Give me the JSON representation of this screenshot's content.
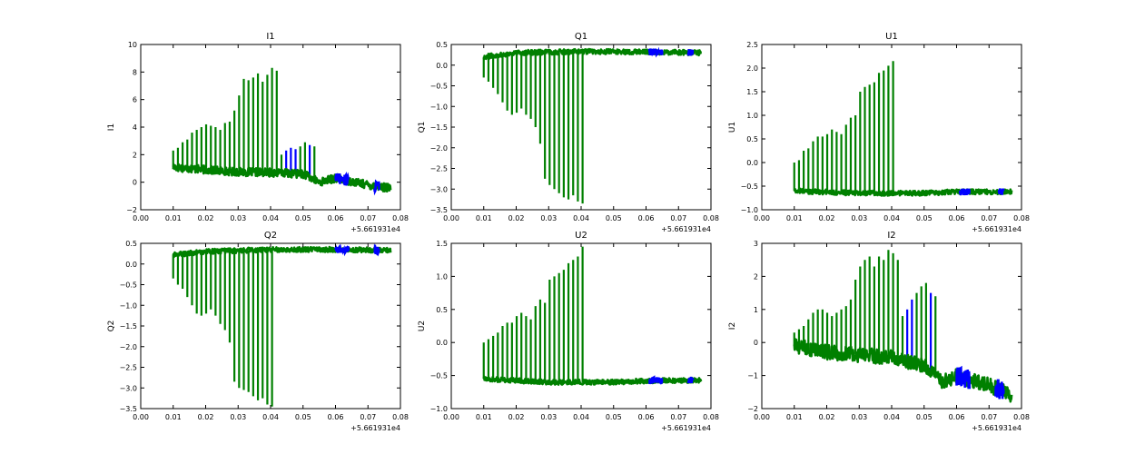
{
  "colors": {
    "series_a": "#0000ff",
    "series_b": "#008000",
    "frame": "#000000",
    "background": "#ffffff"
  },
  "chart_data": [
    {
      "type": "line",
      "title": "I1",
      "xlabel": "",
      "ylabel": "I1",
      "xlim": [
        0.0,
        0.08
      ],
      "ylim": [
        -2,
        10
      ],
      "x_ticks": [
        "0.00",
        "0.01",
        "0.02",
        "0.03",
        "0.04",
        "0.05",
        "0.06",
        "0.07",
        "0.08"
      ],
      "y_ticks": [
        "−2",
        "0",
        "2",
        "4",
        "6",
        "8",
        "10"
      ],
      "x_offset_label": "+5.661931e4",
      "grid": false,
      "baseline": {
        "x": [
          0.01,
          0.02,
          0.03,
          0.04,
          0.05,
          0.055,
          0.06,
          0.07,
          0.077
        ],
        "y": [
          1.1,
          0.9,
          0.75,
          0.7,
          0.6,
          0.0,
          0.3,
          -0.2,
          -0.45
        ]
      },
      "spikes": {
        "x_start": 0.01,
        "step": 0.00145,
        "count": 31,
        "levels": [
          2.3,
          2.5,
          2.9,
          3.1,
          3.6,
          3.8,
          4.0,
          4.2,
          4.1,
          4.0,
          3.8,
          4.3,
          4.4,
          5.2,
          6.3,
          7.5,
          7.4,
          7.6,
          7.9,
          7.3,
          7.8,
          8.3,
          8.1,
          2.0,
          2.3,
          2.5,
          2.4,
          2.6,
          2.9,
          2.7,
          2.6
        ],
        "blue_indices": [
          24,
          25,
          26,
          29
        ]
      },
      "blue_bands": [
        [
          0.06,
          0.064
        ],
        [
          0.072,
          0.0735
        ]
      ]
    },
    {
      "type": "line",
      "title": "Q1",
      "xlabel": "",
      "ylabel": "Q1",
      "xlim": [
        0.0,
        0.08
      ],
      "ylim": [
        -3.5,
        0.5
      ],
      "x_ticks": [
        "0.00",
        "0.01",
        "0.02",
        "0.03",
        "0.04",
        "0.05",
        "0.06",
        "0.07",
        "0.08"
      ],
      "y_ticks": [
        "−3.5",
        "−3.0",
        "−2.5",
        "−2.0",
        "−1.5",
        "−1.0",
        "−0.5",
        "0.0",
        "0.5"
      ],
      "x_offset_label": "+5.661931e4",
      "grid": false,
      "baseline": {
        "x": [
          0.01,
          0.02,
          0.04,
          0.06,
          0.077
        ],
        "y": [
          0.2,
          0.3,
          0.33,
          0.32,
          0.3
        ]
      },
      "spikes": {
        "x_start": 0.01,
        "step": 0.00145,
        "count": 22,
        "levels": [
          -0.3,
          -0.4,
          -0.55,
          -0.7,
          -0.9,
          -1.1,
          -1.2,
          -1.15,
          -1.05,
          -1.2,
          -1.3,
          -1.5,
          -1.9,
          -2.75,
          -2.9,
          -3.0,
          -3.1,
          -3.2,
          -3.25,
          -3.15,
          -3.3,
          -3.35
        ],
        "blue_indices": []
      },
      "blue_bands": [
        [
          0.061,
          0.065
        ],
        [
          0.073,
          0.0745
        ]
      ]
    },
    {
      "type": "line",
      "title": "U1",
      "xlabel": "",
      "ylabel": "U1",
      "xlim": [
        0.0,
        0.08
      ],
      "ylim": [
        -1.0,
        2.5
      ],
      "x_ticks": [
        "0.00",
        "0.01",
        "0.02",
        "0.03",
        "0.04",
        "0.05",
        "0.06",
        "0.07",
        "0.08"
      ],
      "y_ticks": [
        "−1.0",
        "−0.5",
        "0.0",
        "0.5",
        "1.0",
        "1.5",
        "2.0",
        "2.5"
      ],
      "x_offset_label": "+5.661931e4",
      "grid": false,
      "baseline": {
        "x": [
          0.01,
          0.03,
          0.05,
          0.06,
          0.077
        ],
        "y": [
          -0.6,
          -0.65,
          -0.65,
          -0.62,
          -0.62
        ]
      },
      "spikes": {
        "x_start": 0.01,
        "step": 0.00145,
        "count": 22,
        "levels": [
          0.0,
          0.05,
          0.25,
          0.3,
          0.45,
          0.55,
          0.55,
          0.6,
          0.7,
          0.65,
          0.6,
          0.8,
          0.95,
          1.0,
          1.5,
          1.6,
          1.65,
          1.7,
          1.9,
          1.95,
          2.05,
          2.15
        ],
        "blue_indices": []
      },
      "blue_bands": [
        [
          0.061,
          0.064
        ],
        [
          0.073,
          0.0745
        ]
      ]
    },
    {
      "type": "line",
      "title": "Q2",
      "xlabel": "",
      "ylabel": "Q2",
      "xlim": [
        0.0,
        0.08
      ],
      "ylim": [
        -3.5,
        0.5
      ],
      "x_ticks": [
        "0.00",
        "0.01",
        "0.02",
        "0.03",
        "0.04",
        "0.05",
        "0.06",
        "0.07",
        "0.08"
      ],
      "y_ticks": [
        "−3.5",
        "−3.0",
        "−2.5",
        "−2.0",
        "−1.5",
        "−1.0",
        "−0.5",
        "0.0",
        "0.5"
      ],
      "x_offset_label": "+5.661931e4",
      "grid": false,
      "baseline": {
        "x": [
          0.01,
          0.02,
          0.04,
          0.06,
          0.077
        ],
        "y": [
          0.22,
          0.3,
          0.35,
          0.35,
          0.33
        ]
      },
      "spikes": {
        "x_start": 0.01,
        "step": 0.00145,
        "count": 22,
        "levels": [
          -0.35,
          -0.5,
          -0.6,
          -0.8,
          -1.0,
          -1.2,
          -1.25,
          -1.2,
          -1.1,
          -1.25,
          -1.45,
          -1.6,
          -1.9,
          -2.85,
          -3.0,
          -3.05,
          -3.1,
          -3.2,
          -3.3,
          -3.25,
          -3.4,
          -3.45
        ],
        "blue_indices": []
      },
      "blue_bands": [
        [
          0.06,
          0.064
        ],
        [
          0.072,
          0.0735
        ]
      ]
    },
    {
      "type": "line",
      "title": "U2",
      "xlabel": "",
      "ylabel": "U2",
      "xlim": [
        0.0,
        0.08
      ],
      "ylim": [
        -1.0,
        1.5
      ],
      "x_ticks": [
        "0.00",
        "0.01",
        "0.02",
        "0.03",
        "0.04",
        "0.05",
        "0.06",
        "0.07",
        "0.08"
      ],
      "y_ticks": [
        "−1.0",
        "−0.5",
        "0.0",
        "0.5",
        "1.0",
        "1.5"
      ],
      "x_offset_label": "+5.661931e4",
      "grid": false,
      "baseline": {
        "x": [
          0.01,
          0.03,
          0.05,
          0.06,
          0.077
        ],
        "y": [
          -0.55,
          -0.6,
          -0.6,
          -0.58,
          -0.57
        ]
      },
      "spikes": {
        "x_start": 0.01,
        "step": 0.00145,
        "count": 22,
        "levels": [
          0.0,
          0.05,
          0.1,
          0.15,
          0.25,
          0.3,
          0.3,
          0.4,
          0.45,
          0.4,
          0.35,
          0.55,
          0.65,
          0.6,
          0.95,
          1.0,
          1.05,
          1.1,
          1.2,
          1.25,
          1.3,
          1.45
        ],
        "blue_indices": []
      },
      "blue_bands": [
        [
          0.061,
          0.065
        ],
        [
          0.073,
          0.0745
        ]
      ]
    },
    {
      "type": "line",
      "title": "I2",
      "xlabel": "",
      "ylabel": "I2",
      "xlim": [
        0.0,
        0.08
      ],
      "ylim": [
        -2,
        3
      ],
      "x_ticks": [
        "0.00",
        "0.01",
        "0.02",
        "0.03",
        "0.04",
        "0.05",
        "0.06",
        "0.07",
        "0.08"
      ],
      "y_ticks": [
        "−2",
        "−1",
        "0",
        "1",
        "2",
        "3"
      ],
      "x_offset_label": "+5.661931e4",
      "grid": false,
      "baseline": {
        "x": [
          0.01,
          0.02,
          0.04,
          0.05,
          0.056,
          0.06,
          0.07,
          0.077
        ],
        "y": [
          -0.1,
          -0.3,
          -0.45,
          -0.7,
          -1.2,
          -1.0,
          -1.3,
          -1.6
        ]
      },
      "spikes": {
        "x_start": 0.01,
        "step": 0.00145,
        "count": 31,
        "levels": [
          0.3,
          0.4,
          0.5,
          0.7,
          0.9,
          1.0,
          1.0,
          0.9,
          0.8,
          0.9,
          1.0,
          1.1,
          1.3,
          1.9,
          2.3,
          2.5,
          2.6,
          2.3,
          2.6,
          2.5,
          2.8,
          2.7,
          2.5,
          0.8,
          1.0,
          1.3,
          1.5,
          1.7,
          1.8,
          1.5,
          1.4
        ],
        "blue_indices": [
          24,
          25,
          29
        ]
      },
      "blue_bands": [
        [
          0.06,
          0.064
        ],
        [
          0.072,
          0.0745
        ]
      ]
    }
  ]
}
